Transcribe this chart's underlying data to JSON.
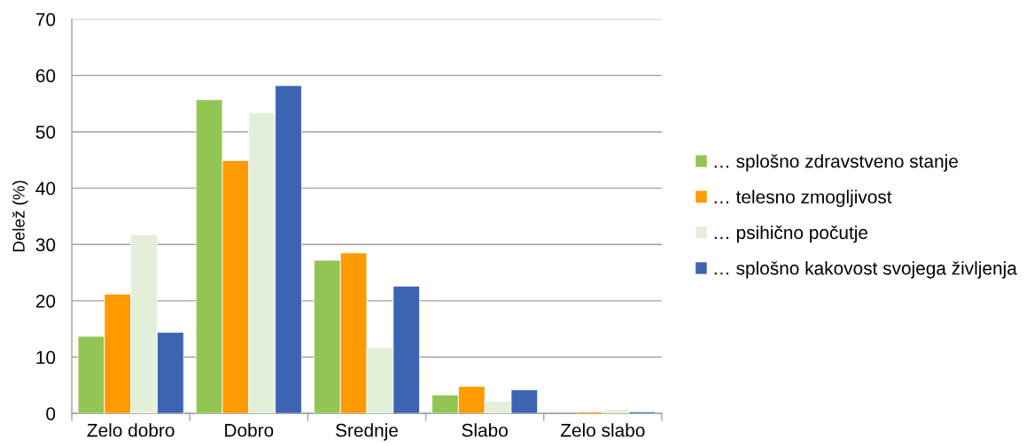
{
  "chart_data": {
    "type": "bar",
    "ylabel": "Delež (%)",
    "categories": [
      "Zelo dobro",
      "Dobro",
      "Srednje",
      "Slabo",
      "Zelo slabo"
    ],
    "series": [
      {
        "name": "… splošno zdravstveno stanje",
        "color": "#92c553",
        "values": [
          13.7,
          55.7,
          27.2,
          3.3,
          null
        ]
      },
      {
        "name": "… telesno zmogljivost",
        "color": "#ff9a00",
        "values": [
          21.2,
          44.9,
          28.5,
          4.8,
          0.3
        ]
      },
      {
        "name": "… psihično počutje",
        "color": "#e2efd9",
        "values": [
          31.7,
          53.4,
          11.7,
          2.2,
          0.7
        ]
      },
      {
        "name": "… splošno kakovost svojega življenja",
        "color": "#3c64b1",
        "values": [
          14.4,
          58.2,
          22.6,
          4.2,
          0.3
        ]
      }
    ],
    "ylim": [
      0,
      70
    ],
    "yticks": [
      0,
      10,
      20,
      30,
      40,
      50,
      60,
      70
    ],
    "grid": "y",
    "legend": "right"
  }
}
